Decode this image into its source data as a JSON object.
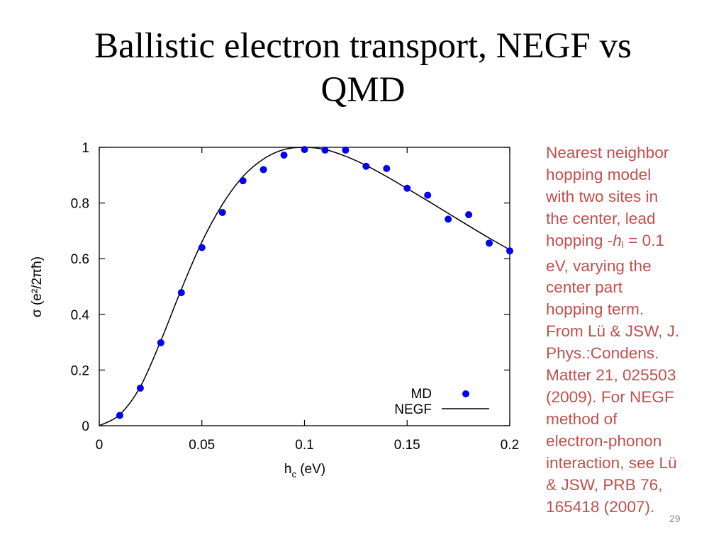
{
  "slide": {
    "title_line1": "Ballistic electron transport, NEGF vs",
    "title_line2": "QMD",
    "page_number": "29"
  },
  "side_text": {
    "lines": [
      "Nearest neighbor",
      "hopping model",
      "with two sites in",
      "the center, lead",
      "hopping -",
      "eV, varying the",
      "center part",
      "hopping term.",
      "From Lü & JSW, J.",
      "Phys.:Condens.",
      "Matter 21, 025503",
      "(2009).  For NEGF",
      "method of",
      "electron-phonon",
      "interaction, see Lü",
      "& JSW, PRB 76,",
      "165418 (2007)."
    ],
    "hopping_symbol": "h",
    "hopping_subscript": "l",
    "hopping_value": " = 0.1"
  },
  "colors": {
    "text_accent": "#c0504d",
    "md_points": "#0000ee",
    "negf_line": "#000000"
  },
  "chart_data": {
    "type": "scatter",
    "title": "",
    "xlabel": "h",
    "xlabel_sub": "c",
    "xlabel_unit": " (eV)",
    "ylabel": "σ (e²/2πħ)",
    "xlim": [
      0,
      0.2
    ],
    "ylim": [
      0,
      1
    ],
    "x_ticks": [
      0,
      0.05,
      0.1,
      0.15,
      0.2
    ],
    "x_tick_labels": [
      "0",
      "0.05",
      "0.1",
      "0.15",
      "0.2"
    ],
    "y_ticks": [
      0,
      0.2,
      0.4,
      0.6,
      0.8,
      1
    ],
    "y_tick_labels": [
      "0",
      "0.2",
      "0.4",
      "0.6",
      "0.8",
      "1"
    ],
    "grid": false,
    "legend_position": "bottom-right",
    "series": [
      {
        "name": "MD",
        "style": "points",
        "x": [
          0.01,
          0.02,
          0.03,
          0.04,
          0.05,
          0.06,
          0.07,
          0.08,
          0.09,
          0.1,
          0.11,
          0.12,
          0.13,
          0.14,
          0.15,
          0.16,
          0.17,
          0.18,
          0.19,
          0.2
        ],
        "y": [
          0.037,
          0.135,
          0.298,
          0.478,
          0.64,
          0.766,
          0.88,
          0.92,
          0.972,
          0.992,
          0.99,
          0.99,
          0.932,
          0.924,
          0.853,
          0.828,
          0.742,
          0.758,
          0.656,
          0.628
        ]
      },
      {
        "name": "NEGF",
        "style": "line",
        "x": [
          0,
          0.01,
          0.02,
          0.03,
          0.04,
          0.05,
          0.06,
          0.07,
          0.08,
          0.09,
          0.1,
          0.11,
          0.12,
          0.13,
          0.14,
          0.15,
          0.16,
          0.17,
          0.18,
          0.19,
          0.2
        ],
        "y": [
          0,
          0.04,
          0.14,
          0.305,
          0.49,
          0.66,
          0.795,
          0.895,
          0.958,
          0.992,
          1.0,
          0.992,
          0.968,
          0.935,
          0.895,
          0.852,
          0.808,
          0.763,
          0.718,
          0.674,
          0.632
        ]
      }
    ]
  }
}
